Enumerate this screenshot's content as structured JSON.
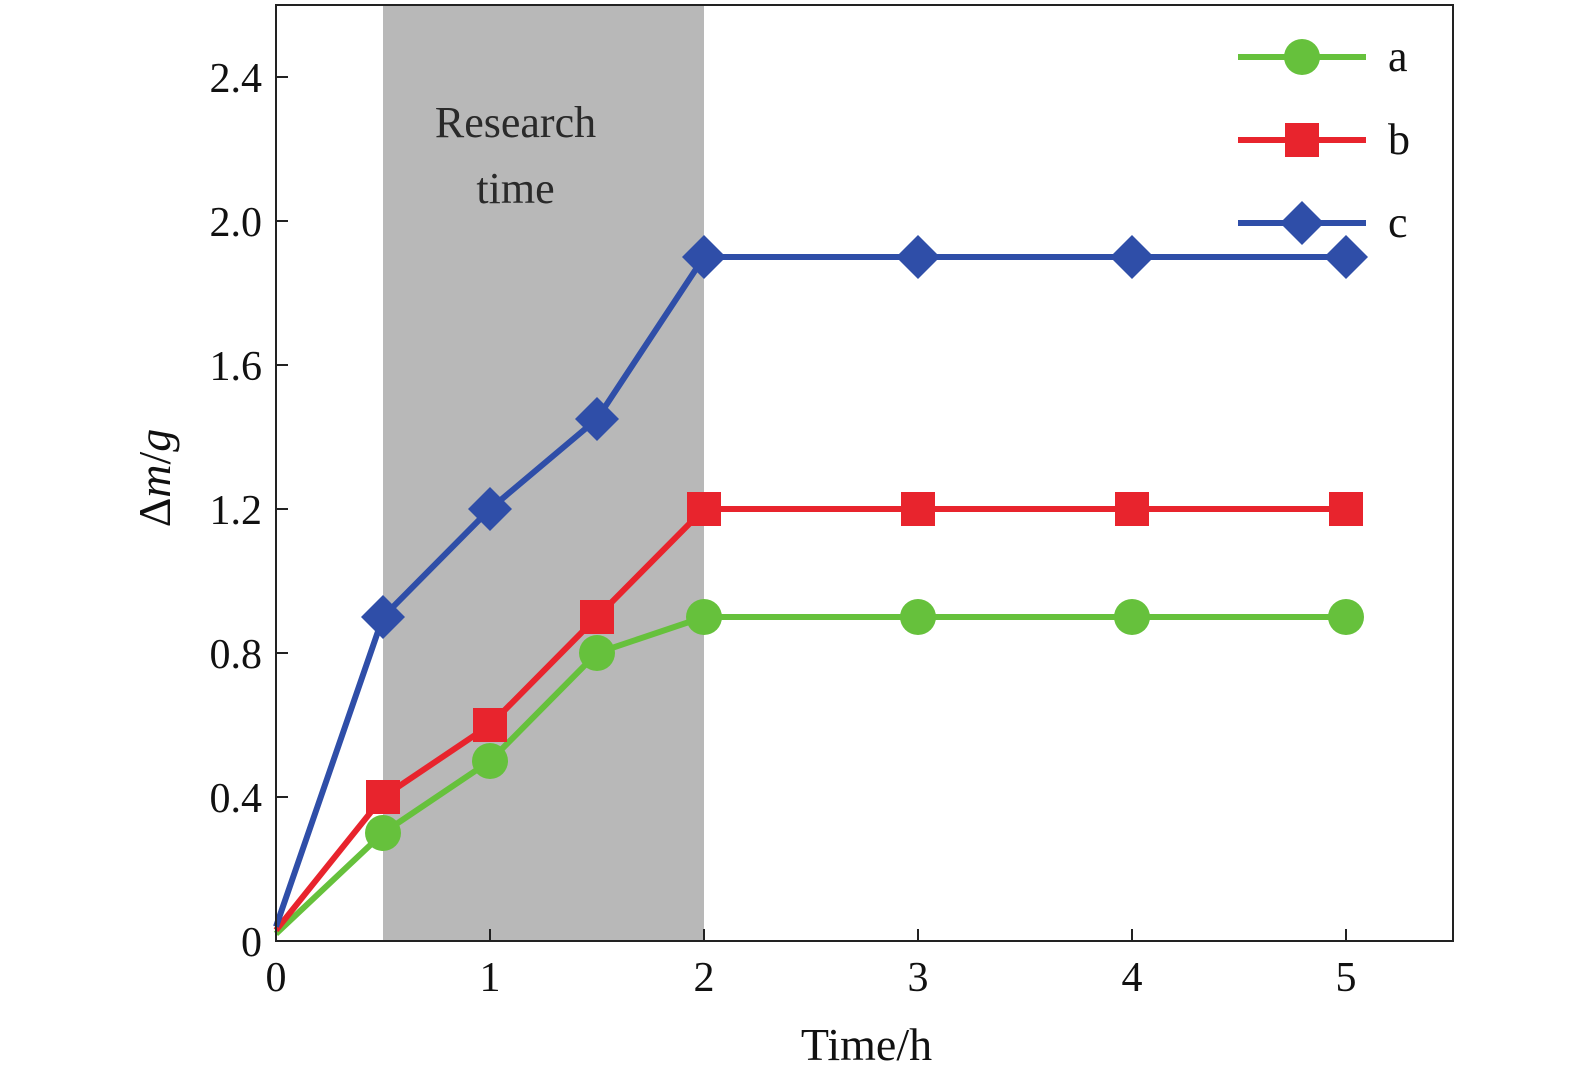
{
  "chart_data": {
    "type": "line",
    "xlabel": "Time/h",
    "ylabel_prefix": "Δ",
    "ylabel_var": "m",
    "ylabel_sep": "/",
    "ylabel_unit": "g",
    "xlim": [
      0,
      5.5
    ],
    "ylim": [
      0,
      2.6
    ],
    "xticks": [
      0,
      1,
      2,
      3,
      4,
      5
    ],
    "xtick_labels": [
      "0",
      "1",
      "2",
      "3",
      "4",
      "5"
    ],
    "yticks": [
      0,
      0.4,
      0.8,
      1.2,
      1.6,
      2.0,
      2.4
    ],
    "ytick_labels": [
      "0",
      "0.4",
      "0.8",
      "1.2",
      "1.6",
      "2.0",
      "2.4"
    ],
    "grid": false,
    "legend_position": "top-right",
    "shaded_region": {
      "x_start": 0.5,
      "x_end": 2.0,
      "label_lines": [
        "Research",
        "time"
      ],
      "color": "#b8b8b8"
    },
    "series": [
      {
        "name": "a",
        "color": "#66c13c",
        "marker": "circle",
        "x": [
          0,
          0.5,
          1,
          1.5,
          2,
          3,
          4,
          5
        ],
        "values": [
          0.02,
          0.3,
          0.5,
          0.8,
          0.9,
          0.9,
          0.9,
          0.9
        ]
      },
      {
        "name": "b",
        "color": "#e8242d",
        "marker": "square",
        "x": [
          0,
          0.5,
          1,
          1.5,
          2,
          3,
          4,
          5
        ],
        "values": [
          0.03,
          0.4,
          0.6,
          0.9,
          1.2,
          1.2,
          1.2,
          1.2
        ]
      },
      {
        "name": "c",
        "color": "#2f4ea8",
        "marker": "diamond",
        "x": [
          0,
          0.5,
          1,
          1.5,
          2,
          3,
          4,
          5
        ],
        "values": [
          0.04,
          0.9,
          1.2,
          1.45,
          1.9,
          1.9,
          1.9,
          1.9
        ]
      }
    ]
  }
}
